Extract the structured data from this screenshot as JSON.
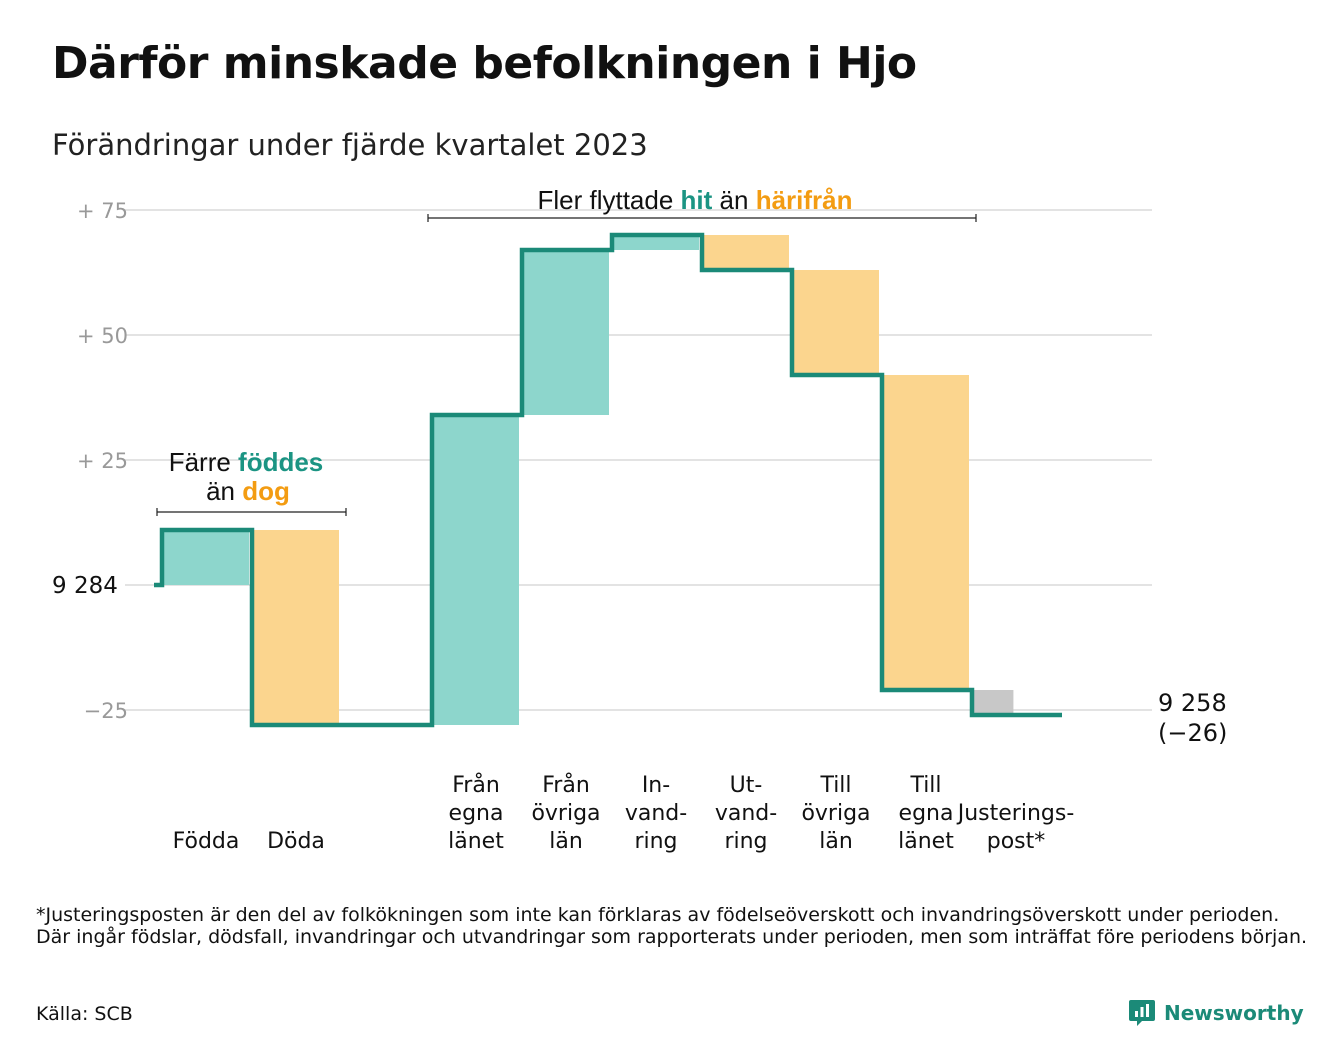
{
  "title": "Därför minskade befolkningen i Hjo",
  "subtitle": "Förändringar under fjärde kvartalet 2023",
  "chart_data": {
    "type": "waterfall",
    "start_value": 9284,
    "start_label": "9  284",
    "end_value": 9258,
    "end_label": "9 258",
    "end_change_label": "(−26)",
    "ylim": [
      -30,
      75
    ],
    "yticks": [
      {
        "value": 75,
        "label": "+  75"
      },
      {
        "value": 50,
        "label": "+  50"
      },
      {
        "value": 25,
        "label": "+  25"
      },
      {
        "value": -25,
        "label": "−25"
      }
    ],
    "steps": [
      {
        "label": [
          "Födda"
        ],
        "change": 11,
        "kind": "in"
      },
      {
        "label": [
          "Döda"
        ],
        "change": -39,
        "kind": "out"
      },
      {
        "label": [],
        "change": 0,
        "kind": "gap"
      },
      {
        "label": [
          "Från",
          "egna",
          "länet"
        ],
        "change": 62,
        "kind": "in"
      },
      {
        "label": [
          "Från",
          "övriga",
          "län"
        ],
        "change": 33,
        "kind": "in"
      },
      {
        "label": [
          "In-",
          "vand-",
          "ring"
        ],
        "change": 3,
        "kind": "in"
      },
      {
        "label": [
          "Ut-",
          "vand-",
          "ring"
        ],
        "change": -7,
        "kind": "out"
      },
      {
        "label": [
          "Till",
          "övriga",
          "län"
        ],
        "change": -21,
        "kind": "out"
      },
      {
        "label": [
          "Till",
          "egna",
          "länet"
        ],
        "change": -63,
        "kind": "out"
      },
      {
        "label": [
          "Justerings-",
          "post*"
        ],
        "change": -5,
        "kind": "adjust"
      }
    ],
    "annotations": [
      {
        "parts": [
          {
            "text": "Fler flyttade ",
            "color": "#111111"
          },
          {
            "text": "hit",
            "color": "#1b9483",
            "bold": true
          },
          {
            "text": "  än ",
            "color": "#111111"
          },
          {
            "text": "härifrån",
            "color": "#f39c12",
            "bold": true
          }
        ]
      },
      {
        "lines": [
          [
            {
              "text": "Färre ",
              "color": "#111111"
            },
            {
              "text": "föddes",
              "color": "#1b9483",
              "bold": true
            }
          ],
          [
            {
              "text": "än ",
              "color": "#111111"
            },
            {
              "text": "dog",
              "color": "#f39c12",
              "bold": true
            }
          ]
        ]
      }
    ],
    "colors": {
      "in_fill": "#8dd6cc",
      "out_fill": "#fbd58e",
      "adjust_fill": "#c8c8c8",
      "line": "#1b8a78",
      "grid": "#e3e3e3",
      "tick_text": "#999999",
      "teal_text": "#1b9483",
      "orange_text": "#f39c12"
    }
  },
  "footnote": "*Justeringsposten är den del av folkökningen som inte kan förklaras av födelseöverskott och invandringsöverskott under perioden. Där ingår födslar, dödsfall, invandringar och utvandringar som rapporterats under perioden, men som inträffat före periodens början.",
  "source": "Källa: SCB",
  "brand": {
    "name": "Newsworthy",
    "icon": "newsworthy-logo-icon"
  }
}
